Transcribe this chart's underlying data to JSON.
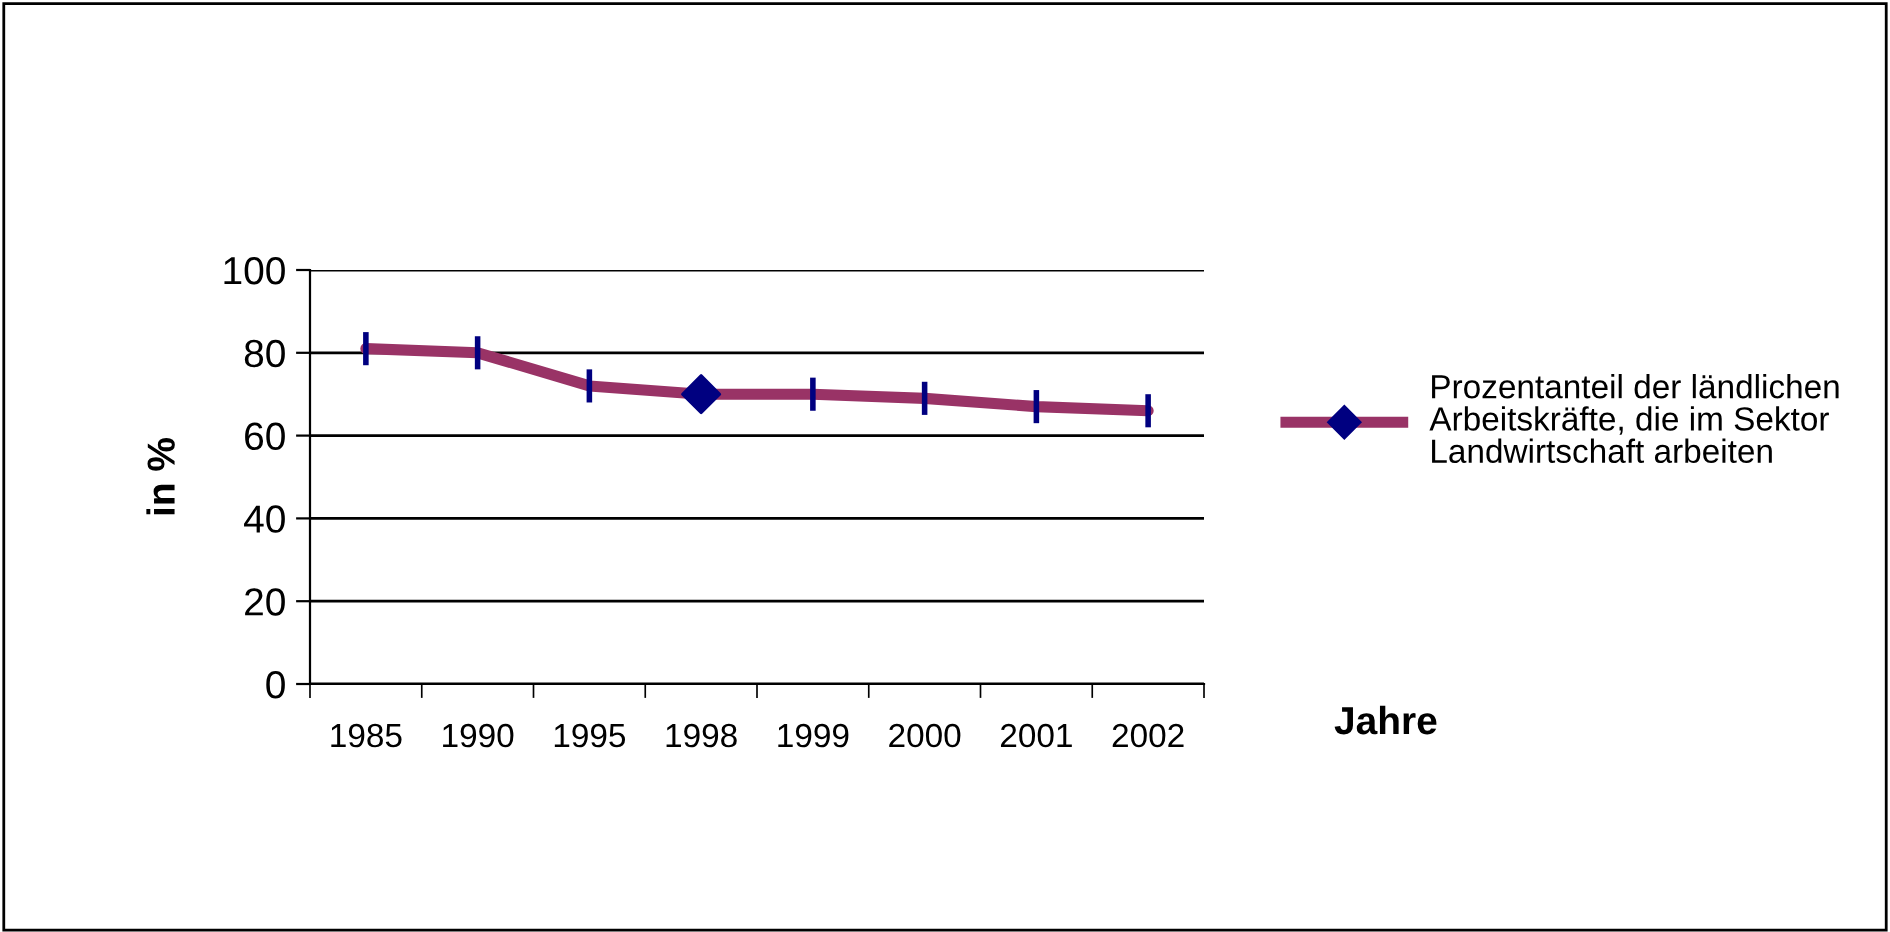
{
  "chart_data": {
    "type": "line",
    "xlabel": "Jahre",
    "ylabel": "in %",
    "categories": [
      "1985",
      "1990",
      "1995",
      "1998",
      "1999",
      "2000",
      "2001",
      "2002"
    ],
    "series": [
      {
        "name": "Prozentanteil der ländlichen Arbeitskräfte, die im Sektor Landwirtschaft arbeiten",
        "color": "#993366",
        "values": [
          81,
          80,
          72,
          70,
          70,
          69,
          67,
          66
        ],
        "errors": [
          4,
          4,
          4,
          null,
          4,
          4,
          4,
          4
        ]
      },
      {
        "type": "scatter",
        "color": "#000080",
        "values": [
          null,
          null,
          null,
          70,
          null,
          null,
          null,
          null
        ],
        "marker": "diamond"
      }
    ],
    "ylim": [
      0,
      100
    ],
    "yticks": [
      0,
      20,
      40,
      60,
      80,
      100
    ],
    "grid": "y",
    "legend": "right",
    "marker": "none",
    "line_style": "solid"
  }
}
